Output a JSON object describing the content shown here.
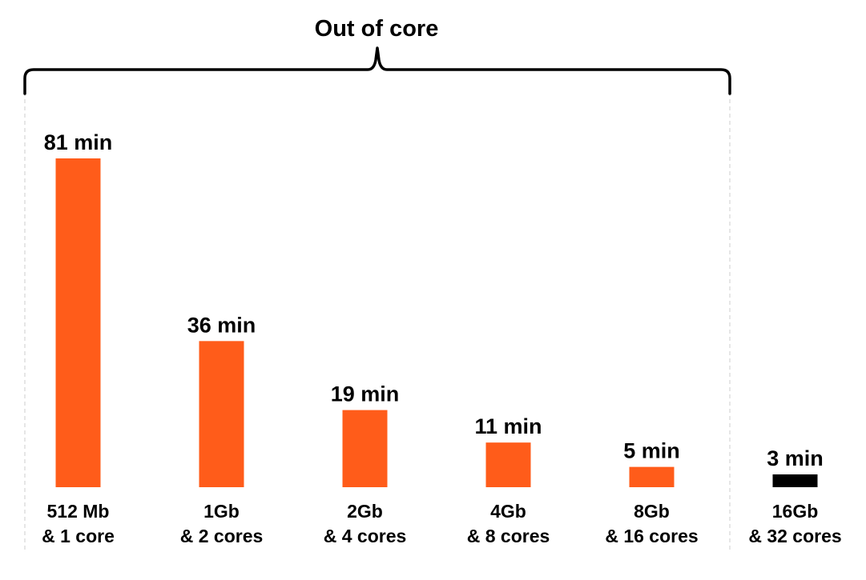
{
  "chart_data": {
    "type": "bar",
    "title": "",
    "xlabel": "",
    "ylabel": "",
    "ylim": [
      0,
      81
    ],
    "grid": false,
    "legend": "none",
    "unit": "min",
    "categories": [
      [
        "512 Mb",
        "& 1 core"
      ],
      [
        "1Gb",
        "& 2 cores"
      ],
      [
        "2Gb",
        "& 4 cores"
      ],
      [
        "4Gb",
        "& 8 cores"
      ],
      [
        "8Gb",
        "& 16 cores"
      ],
      [
        "16Gb",
        "& 32 cores"
      ]
    ],
    "values": [
      81,
      36,
      19,
      11,
      5,
      3
    ],
    "value_labels": [
      "81 min",
      "36 min",
      "19 min",
      "11 min",
      "5 min",
      "3 min"
    ],
    "bar_colors": [
      "#FF5C1A",
      "#FF5C1A",
      "#FF5C1A",
      "#FF5C1A",
      "#FF5C1A",
      "#000000"
    ],
    "group": {
      "label": "Out of core",
      "first_index": 0,
      "last_index": 4
    }
  }
}
